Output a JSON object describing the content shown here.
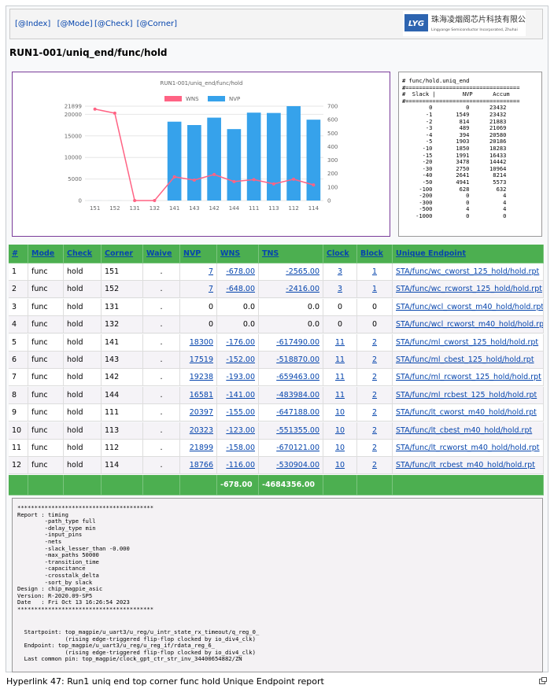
{
  "nav": {
    "links": [
      "[@Index]",
      "[@Mode]",
      "[@Check]",
      "[@Corner]"
    ]
  },
  "logo": {
    "mark": "LYG",
    "name": "珠海凌烟阁芯片科技有限公司",
    "tagline": "Lingyange Semiconductor Incorporated, Zhuhai"
  },
  "title": "RUN1-001/uniq_end/func/hold",
  "chart_data": {
    "type": "bar",
    "title": "RUN1-001/uniq_end/func/hold",
    "categories": [
      "151",
      "152",
      "131",
      "132",
      "141",
      "143",
      "142",
      "144",
      "111",
      "113",
      "112",
      "114"
    ],
    "series": [
      {
        "name": "WNS",
        "color": "#ff6384",
        "type": "line",
        "axis": "y2",
        "values": [
          678,
          648,
          0,
          0,
          176,
          152,
          193,
          141,
          155,
          123,
          158,
          116
        ]
      },
      {
        "name": "NVP",
        "color": "#36a2eb",
        "type": "bar",
        "values": [
          7,
          7,
          0,
          0,
          18300,
          17519,
          19238,
          16581,
          20397,
          20323,
          21899,
          18766
        ]
      }
    ],
    "ylim": [
      0,
      21899
    ],
    "yticks": [
      0,
      5000,
      10000,
      15000,
      20000,
      21899
    ],
    "y2lim": [
      0,
      700
    ],
    "y2ticks": [
      0,
      100,
      200,
      300,
      400,
      500,
      600,
      700
    ],
    "grid": true,
    "legend": "top"
  },
  "slack_report": {
    "lines": [
      "# func/hold.uniq_end",
      "#==================================",
      "#  Slack |        NVP      Accum",
      "#==================================",
      "        0          0      23432",
      "       -1       1549      23432",
      "       -2        814      21883",
      "       -3        489      21069",
      "       -4        394      20580",
      "       -5       1903      20186",
      "      -10       1850      18283",
      "      -15       1991      16433",
      "      -20       3478      14442",
      "      -30       2750      10964",
      "      -40       2641       8214",
      "      -50       4941       5573",
      "     -100        628        632",
      "     -200          0          4",
      "     -300          0          4",
      "     -500          4          4",
      "    -1000          0          0"
    ]
  },
  "table": {
    "header": [
      "#",
      "Mode",
      "Check",
      "Corner",
      "Waive",
      "NVP",
      "WNS",
      "TNS",
      "Clock",
      "Block",
      "Unique Endpoint"
    ],
    "rows": [
      [
        "1",
        "func",
        "hold",
        "151",
        ".",
        "7",
        "-678.00",
        "-2565.00",
        "3",
        "1",
        "STA/func/wc_cworst_125_hold/hold.rpt"
      ],
      [
        "2",
        "func",
        "hold",
        "152",
        ".",
        "7",
        "-648.00",
        "-2416.00",
        "3",
        "1",
        "STA/func/wc_rcworst_125_hold/hold.rpt"
      ],
      [
        "3",
        "func",
        "hold",
        "131",
        ".",
        "0",
        "0.0",
        "0.0",
        "0",
        "0",
        "STA/func/wcl_cworst_m40_hold/hold.rpt"
      ],
      [
        "4",
        "func",
        "hold",
        "132",
        ".",
        "0",
        "0.0",
        "0.0",
        "0",
        "0",
        "STA/func/wcl_rcworst_m40_hold/hold.rpt"
      ],
      [
        "5",
        "func",
        "hold",
        "141",
        ".",
        "18300",
        "-176.00",
        "-617490.00",
        "11",
        "2",
        "STA/func/ml_cworst_125_hold/hold.rpt"
      ],
      [
        "6",
        "func",
        "hold",
        "143",
        ".",
        "17519",
        "-152.00",
        "-518870.00",
        "11",
        "2",
        "STA/func/ml_cbest_125_hold/hold.rpt"
      ],
      [
        "7",
        "func",
        "hold",
        "142",
        ".",
        "19238",
        "-193.00",
        "-659463.00",
        "11",
        "2",
        "STA/func/ml_rcworst_125_hold/hold.rpt"
      ],
      [
        "8",
        "func",
        "hold",
        "144",
        ".",
        "16581",
        "-141.00",
        "-483984.00",
        "11",
        "2",
        "STA/func/ml_rcbest_125_hold/hold.rpt"
      ],
      [
        "9",
        "func",
        "hold",
        "111",
        ".",
        "20397",
        "-155.00",
        "-647188.00",
        "10",
        "2",
        "STA/func/lt_cworst_m40_hold/hold.rpt"
      ],
      [
        "10",
        "func",
        "hold",
        "113",
        ".",
        "20323",
        "-123.00",
        "-551355.00",
        "10",
        "2",
        "STA/func/lt_cbest_m40_hold/hold.rpt"
      ],
      [
        "11",
        "func",
        "hold",
        "112",
        ".",
        "21899",
        "-158.00",
        "-670121.00",
        "10",
        "2",
        "STA/func/lt_rcworst_m40_hold/hold.rpt"
      ],
      [
        "12",
        "func",
        "hold",
        "114",
        ".",
        "18766",
        "-116.00",
        "-530904.00",
        "10",
        "2",
        "STA/func/lt_rcbest_m40_hold/hold.rpt"
      ]
    ],
    "total": {
      "wns": "-678.00",
      "tns": "-4684356.00"
    }
  },
  "report": {
    "header_lines": [
      "****************************************",
      "Report : timing",
      "        -path_type full",
      "        -delay_type min",
      "        -input_pins",
      "        -nets",
      "        -slack_lesser_than -0.000",
      "        -max_paths 50000",
      "        -transition_time",
      "        -capacitance",
      "        -crosstalk_delta",
      "        -sort_by slack",
      "Design : chip_magpie_asic",
      "Version: R-2020.09-SP5",
      "Date   : Fri Oct 13 16:26:54 2023",
      "****************************************"
    ],
    "path_lines": [
      "  Startpoint: top_magpie/u_uart3/u_reg/u_intr_state_rx_timeout/q_reg_0_",
      "              (rising edge-triggered flip-flop clocked by io_div4_clk)",
      "  Endpoint: top_magpie/u_uart3/u_reg/u_reg_if/rdata_reg_6_",
      "              (rising edge-triggered flip-flop clocked by io_div4_clk)",
      "  Last common pin: top_magpie/clock_gpt_ctr_str_inv_34400654882/ZN"
    ]
  },
  "caption": "Hyperlink 47: Run1 uniq end top corner func hold Unique Endpoint report"
}
